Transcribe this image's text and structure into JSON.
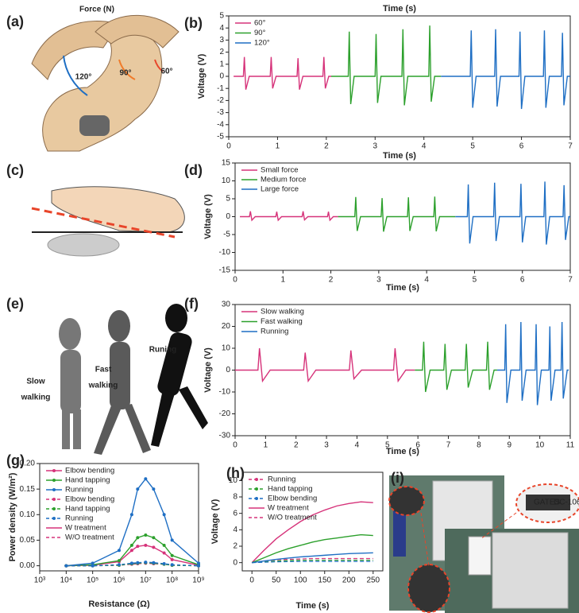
{
  "panel_labels": [
    "(a)",
    "(b)",
    "(c)",
    "(d)",
    "(e)",
    "(f)",
    "(g)",
    "(h)",
    "(i)"
  ],
  "illustrations": {
    "force_label": "Force (N)",
    "angles": [
      "120°",
      "90°",
      "60°"
    ],
    "gait": [
      [
        "Slow",
        "walking"
      ],
      [
        "Fast",
        "walking"
      ],
      [
        "Runing"
      ]
    ],
    "device": [
      "GATES",
      "DC-106"
    ]
  },
  "chart_data": [
    {
      "type": "line",
      "header": "Time (s)",
      "xlabel": "Time (s)",
      "ylabel": "Voltage (V)",
      "xlim": [
        0,
        7
      ],
      "xticks": [
        0,
        1,
        2,
        3,
        4,
        5,
        6,
        7
      ],
      "ylim": [
        -5,
        5
      ],
      "yticks": [
        -5,
        -4,
        -3,
        -2,
        -1,
        0,
        1,
        2,
        3,
        4,
        5
      ],
      "legend": "upper left",
      "series": [
        {
          "name": "60°",
          "color": "#d6337a",
          "x": [
            0.1,
            0.3,
            0.32,
            0.35,
            0.42,
            0.85,
            0.87,
            0.9,
            0.97,
            1.4,
            1.42,
            1.45,
            1.52,
            1.93,
            1.95,
            1.98,
            2.05,
            2.1
          ],
          "values": [
            0,
            0,
            1.6,
            -1.1,
            0,
            0,
            1.6,
            -1.0,
            0,
            0,
            1.5,
            -1.1,
            0,
            0,
            1.6,
            -1.0,
            0,
            0
          ]
        },
        {
          "name": "90°",
          "color": "#2ca02c",
          "x": [
            2.1,
            2.45,
            2.47,
            2.5,
            2.57,
            3.0,
            3.02,
            3.05,
            3.12,
            3.55,
            3.57,
            3.6,
            3.67,
            4.1,
            4.12,
            4.15,
            4.22,
            4.35
          ],
          "values": [
            0,
            0,
            3.7,
            -2.3,
            0,
            0,
            3.5,
            -2.2,
            0,
            0,
            3.9,
            -2.4,
            0,
            0,
            4.2,
            -2.1,
            0,
            0
          ]
        },
        {
          "name": "120°",
          "color": "#1f6fc4",
          "x": [
            4.35,
            4.95,
            4.97,
            5.0,
            5.07,
            5.45,
            5.47,
            5.5,
            5.57,
            5.95,
            5.97,
            6.0,
            6.07,
            6.45,
            6.47,
            6.5,
            6.57,
            6.82,
            6.84,
            6.87,
            6.94,
            7.0
          ],
          "values": [
            0,
            0,
            3.8,
            -2.6,
            0,
            0,
            3.9,
            -2.5,
            0,
            0,
            3.7,
            -2.7,
            0,
            0,
            3.8,
            -2.6,
            0,
            0,
            3.6,
            -2.4,
            0,
            0
          ]
        }
      ]
    },
    {
      "type": "line",
      "xlabel": "Time (s)",
      "ylabel": "Voltage (V)",
      "xlim": [
        0,
        7
      ],
      "xticks": [
        0,
        1,
        2,
        3,
        4,
        5,
        6,
        7
      ],
      "ylim": [
        -15,
        15
      ],
      "yticks": [
        -15,
        -10,
        -5,
        0,
        5,
        10,
        15
      ],
      "legend": "upper left",
      "series": [
        {
          "name": "Small force",
          "color": "#d6337a",
          "x": [
            0.1,
            0.3,
            0.32,
            0.35,
            0.42,
            0.85,
            0.87,
            0.9,
            0.97,
            1.4,
            1.42,
            1.45,
            1.52,
            1.93,
            1.95,
            1.98,
            2.05,
            2.15
          ],
          "values": [
            0,
            0,
            1.5,
            -1.0,
            0,
            0,
            1.4,
            -1.0,
            0,
            0,
            1.5,
            -0.9,
            0,
            0,
            1.4,
            -1.0,
            0,
            0
          ]
        },
        {
          "name": "Medium force",
          "color": "#2ca02c",
          "x": [
            2.15,
            2.5,
            2.52,
            2.55,
            2.62,
            3.05,
            3.07,
            3.1,
            3.17,
            3.6,
            3.62,
            3.65,
            3.72,
            4.15,
            4.17,
            4.2,
            4.27,
            4.6
          ],
          "values": [
            0,
            0,
            5.5,
            -4.0,
            0,
            0,
            5.2,
            -4.2,
            0,
            0,
            5.4,
            -4.0,
            0,
            0,
            5.6,
            -4.1,
            0,
            0
          ]
        },
        {
          "name": "Large force",
          "color": "#1f6fc4",
          "x": [
            4.6,
            4.85,
            4.87,
            4.9,
            4.97,
            5.4,
            5.42,
            5.45,
            5.52,
            5.95,
            5.97,
            6.0,
            6.07,
            6.45,
            6.47,
            6.5,
            6.57,
            6.85,
            6.87,
            6.9,
            6.97,
            7.0
          ],
          "values": [
            0,
            0,
            9.0,
            -7.5,
            0,
            0,
            9.5,
            -6.8,
            0,
            0,
            9.2,
            -7.2,
            0,
            0,
            9.8,
            -7.8,
            0,
            0,
            8.8,
            -6.5,
            0,
            0
          ]
        }
      ]
    },
    {
      "type": "line",
      "xlabel": "Time (s)",
      "ylabel": "Voltage (V)",
      "xlim": [
        0,
        11
      ],
      "xticks": [
        0,
        1,
        2,
        3,
        4,
        5,
        6,
        7,
        8,
        9,
        10,
        11
      ],
      "ylim": [
        -30,
        30
      ],
      "yticks": [
        -30,
        -20,
        -10,
        0,
        10,
        20,
        30
      ],
      "legend": "upper left",
      "series": [
        {
          "name": "Slow walking",
          "color": "#d6337a",
          "x": [
            0,
            0.75,
            0.8,
            0.9,
            1.15,
            2.25,
            2.3,
            2.4,
            2.65,
            3.75,
            3.8,
            3.9,
            4.15,
            5.2,
            5.25,
            5.35,
            5.6,
            5.9
          ],
          "values": [
            0,
            0,
            10,
            -5,
            0,
            0,
            8,
            -5,
            0,
            0,
            9,
            -4,
            0,
            0,
            10,
            -5,
            0,
            0
          ]
        },
        {
          "name": "Fast walking",
          "color": "#2ca02c",
          "x": [
            5.9,
            6.15,
            6.19,
            6.25,
            6.4,
            6.85,
            6.89,
            6.95,
            7.1,
            7.55,
            7.59,
            7.65,
            7.8,
            8.25,
            8.29,
            8.35,
            8.5,
            8.6
          ],
          "values": [
            0,
            0,
            13,
            -10,
            0,
            0,
            12,
            -9,
            0,
            0,
            12,
            -8,
            0,
            0,
            13,
            -9,
            0,
            0
          ]
        },
        {
          "name": "Running",
          "color": "#1f6fc4",
          "x": [
            8.6,
            8.85,
            8.88,
            8.92,
            9.05,
            9.35,
            9.38,
            9.42,
            9.55,
            9.85,
            9.88,
            9.92,
            10.05,
            10.3,
            10.33,
            10.37,
            10.5,
            10.7,
            10.73,
            10.77,
            10.9,
            10.95
          ],
          "values": [
            0,
            0,
            21,
            -15,
            0,
            0,
            22,
            -14,
            0,
            0,
            21,
            -16,
            0,
            0,
            20,
            -14,
            0,
            0,
            22,
            -13,
            0,
            0
          ]
        }
      ]
    },
    {
      "type": "line",
      "xscale": "log",
      "markers": true,
      "xlabel": "Resistance (Ω)",
      "ylabel": "Power density (W/m²)",
      "xlim": [
        1000,
        1000000000
      ],
      "xticks": [
        {
          "value": 1000,
          "label": "10³"
        },
        {
          "value": 10000,
          "label": "10⁴"
        },
        {
          "value": 100000,
          "label": "10⁵"
        },
        {
          "value": 1000000,
          "label": "10⁶"
        },
        {
          "value": 10000000,
          "label": "10⁷"
        },
        {
          "value": 100000000,
          "label": "10⁸"
        },
        {
          "value": 1000000000,
          "label": "10⁹"
        }
      ],
      "ylim": [
        -0.01,
        0.2
      ],
      "yticks": [
        {
          "value": 0,
          "label": "0.00"
        },
        {
          "value": 0.05,
          "label": "0.05"
        },
        {
          "value": 0.1,
          "label": "0.10"
        },
        {
          "value": 0.15,
          "label": "0.15"
        },
        {
          "value": 0.2,
          "label": "0.20"
        }
      ],
      "legend": "upper left",
      "x": [
        10000,
        100000,
        1000000,
        3000000,
        5000000,
        10000000,
        20000000,
        50000000,
        100000000,
        1000000000
      ],
      "series": [
        {
          "name": "Elbow bending",
          "color": "#d6337a",
          "dash": false,
          "values": [
            0,
            0.001,
            0.008,
            0.03,
            0.038,
            0.04,
            0.036,
            0.025,
            0.012,
            0.001
          ]
        },
        {
          "name": "Hand tapping",
          "color": "#2ca02c",
          "dash": false,
          "values": [
            0,
            0.002,
            0.01,
            0.04,
            0.055,
            0.06,
            0.055,
            0.04,
            0.02,
            0.002
          ]
        },
        {
          "name": "Running",
          "color": "#1f6fc4",
          "dash": false,
          "values": [
            0,
            0.005,
            0.03,
            0.1,
            0.15,
            0.17,
            0.15,
            0.1,
            0.05,
            0.005
          ]
        },
        {
          "name": "Elbow bending",
          "color": "#d6337a",
          "dash": true,
          "values": [
            0,
            0,
            0.001,
            0.003,
            0.004,
            0.005,
            0.004,
            0.003,
            0.001,
            0
          ]
        },
        {
          "name": "Hand tapping",
          "color": "#2ca02c",
          "dash": true,
          "values": [
            0,
            0,
            0.001,
            0.004,
            0.005,
            0.006,
            0.005,
            0.003,
            0.001,
            0
          ]
        },
        {
          "name": "Running",
          "color": "#1f6fc4",
          "dash": true,
          "values": [
            0,
            0,
            0.002,
            0.005,
            0.006,
            0.007,
            0.006,
            0.004,
            0.002,
            0
          ]
        }
      ],
      "style_legend": [
        {
          "name": "W treatment",
          "dash": false,
          "color": "#d6337a"
        },
        {
          "name": "W/O treatment",
          "dash": true,
          "color": "#d6337a"
        }
      ]
    },
    {
      "type": "line",
      "xlabel": "Time (s)",
      "ylabel": "Voltage (V)",
      "xlim": [
        -20,
        270
      ],
      "xticks": [
        0,
        50,
        100,
        150,
        200,
        250
      ],
      "ylim": [
        -1,
        11
      ],
      "yticks": [
        0,
        2,
        4,
        6,
        8,
        10
      ],
      "legend": "upper left",
      "x": [
        0,
        25,
        50,
        75,
        100,
        125,
        150,
        175,
        200,
        225,
        250
      ],
      "series": [
        {
          "name": "Running",
          "color": "#d6337a",
          "values": [
            0,
            1.5,
            2.9,
            4.0,
            5.0,
            5.8,
            6.4,
            6.9,
            7.2,
            7.4,
            7.3
          ],
          "values_wo": [
            0,
            0.2,
            0.35,
            0.4,
            0.45,
            0.5,
            0.5,
            0.5,
            0.5,
            0.5,
            0.5
          ]
        },
        {
          "name": "Hand tapping",
          "color": "#2ca02c",
          "values": [
            0,
            0.6,
            1.2,
            1.7,
            2.1,
            2.5,
            2.8,
            3.0,
            3.2,
            3.4,
            3.3
          ],
          "values_wo": [
            0,
            0.1,
            0.2,
            0.25,
            0.3,
            0.3,
            0.3,
            0.3,
            0.3,
            0.3,
            0.3
          ]
        },
        {
          "name": "Elbow bending",
          "color": "#1f6fc4",
          "values": [
            0,
            0.2,
            0.4,
            0.55,
            0.7,
            0.8,
            0.9,
            1.0,
            1.1,
            1.15,
            1.2
          ],
          "values_wo": [
            0,
            0.05,
            0.1,
            0.12,
            0.15,
            0.15,
            0.15,
            0.15,
            0.15,
            0.15,
            0.15
          ]
        }
      ],
      "style_legend": [
        {
          "name": "W treatment",
          "dash": false,
          "color": "#d6337a"
        },
        {
          "name": "W/O treatment",
          "dash": true,
          "color": "#d6337a"
        }
      ]
    }
  ]
}
